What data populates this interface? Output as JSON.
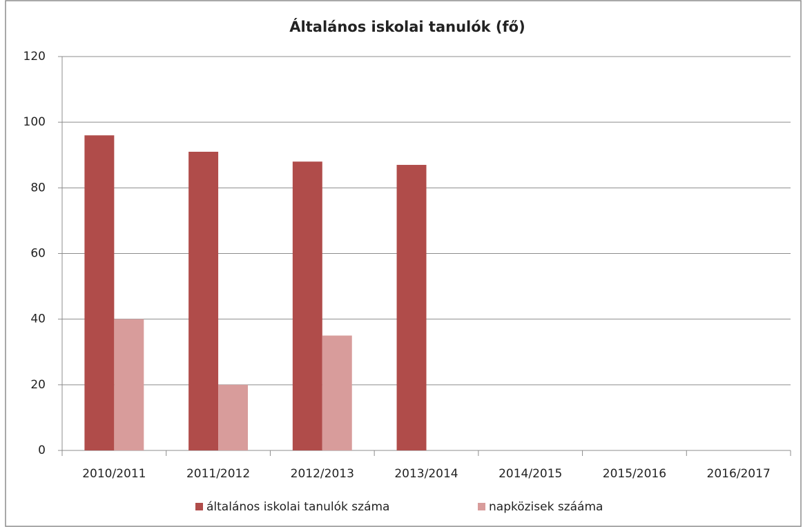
{
  "chart_data": {
    "type": "bar",
    "title": "Általános iskolai tanulók (fő)",
    "categories": [
      "2010/2011",
      "2011/2012",
      "2012/2013",
      "2013/2014",
      "2014/2015",
      "2015/2016",
      "2016/2017"
    ],
    "series": [
      {
        "name": "általános iskolai tanulók száma",
        "color": "#b04c4a",
        "values": [
          96,
          91,
          88,
          87,
          null,
          null,
          null
        ]
      },
      {
        "name": "napközisek szááma",
        "color": "#d89c9b",
        "values": [
          40,
          20,
          35,
          null,
          null,
          null,
          null
        ]
      }
    ],
    "ylim": [
      0,
      120
    ],
    "yticks": [
      0,
      20,
      40,
      60,
      80,
      100,
      120
    ],
    "grid": true,
    "legend": "bottom"
  }
}
